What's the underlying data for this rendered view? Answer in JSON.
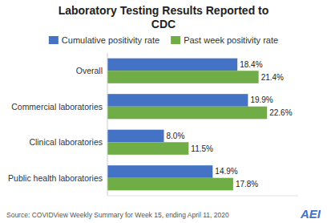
{
  "chart_data": {
    "type": "bar",
    "orientation": "horizontal",
    "title": "Laboratory Testing Results Reported to\nCDC",
    "categories": [
      "Public health laboratories",
      "Clinical laboratories",
      "Commercial laboratories",
      "Overall"
    ],
    "series": [
      {
        "name": "Cumulative positivity rate",
        "color": "#4472C4",
        "values": [
          14.9,
          8.0,
          19.9,
          18.4
        ],
        "value_labels": [
          "14.9%",
          "8.0%",
          "19.9%",
          "18.4%"
        ]
      },
      {
        "name": "Past week positivity rate",
        "color": "#70AD47",
        "values": [
          17.8,
          11.5,
          22.6,
          21.4
        ],
        "value_labels": [
          "17.8%",
          "11.5%",
          "22.6%",
          "21.4%"
        ]
      }
    ],
    "xlim": [
      0,
      27
    ],
    "data_labels": true,
    "tick_labels": "y",
    "legend": "top",
    "annotations": [
      "Source: COVIDView Weekly Summary for Week 15, ending April 11, 2020",
      "AEI"
    ]
  }
}
